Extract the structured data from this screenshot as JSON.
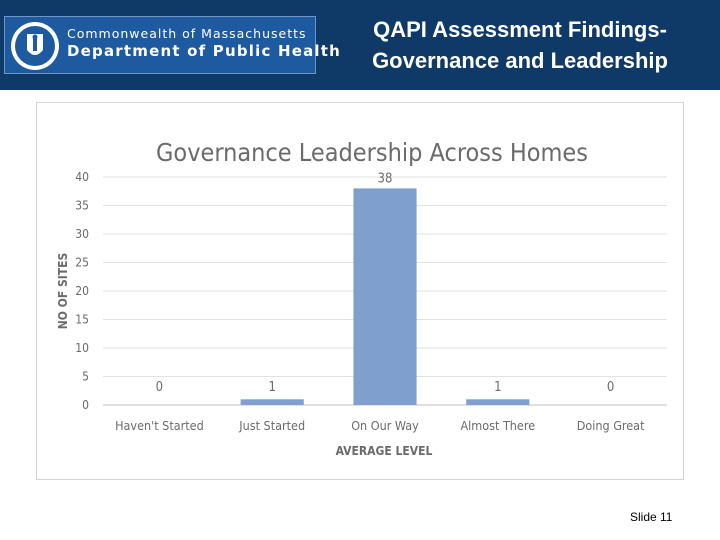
{
  "header": {
    "title_line1": "QAPI Assessment Findings-",
    "title_line2": "Governance and Leadership",
    "logo_line1": "Commonwealth of Massachusetts",
    "logo_line2": "Department of Public Health",
    "background_color": "#0f3a67"
  },
  "chart_data": {
    "type": "bar",
    "title": "Governance Leadership Across Homes",
    "xlabel": "AVERAGE LEVEL",
    "ylabel": "NO OF SITES",
    "categories": [
      "Haven't Started",
      "Just Started",
      "On Our Way",
      "Almost There",
      "Doing Great"
    ],
    "values": [
      0,
      1,
      38,
      1,
      0
    ],
    "data_labels": [
      "0",
      "1",
      "38",
      "1",
      "0"
    ],
    "yticks": [
      "0",
      "5",
      "10",
      "15",
      "20",
      "25",
      "30",
      "35",
      "40"
    ],
    "ylim": [
      0,
      40
    ],
    "grid": true,
    "legend": "none",
    "bar_color": "#7f9fcf"
  },
  "footer": {
    "slide_label": "Slide 11"
  }
}
